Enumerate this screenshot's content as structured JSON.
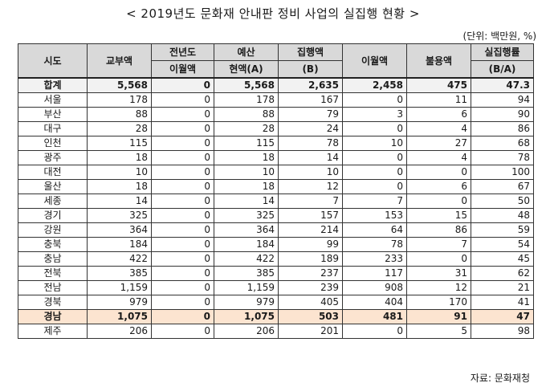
{
  "title": "< 2019년도 문화재 안내판 정비 사업의 실집행 현황 >",
  "unit": "(단위: 백만원, %)",
  "source": "자료: 문화재청",
  "columns": {
    "region": "시도",
    "grant": "교부액",
    "prev_carry": [
      "전년도",
      "이월액"
    ],
    "budget": [
      "예산",
      "현액(A)"
    ],
    "executed": [
      "집행액",
      "(B)"
    ],
    "carryover": "이월액",
    "unused": "불용액",
    "rate": [
      "실집행률",
      "(B/A)"
    ]
  },
  "total": [
    "합계",
    "5,568",
    "0",
    "5,568",
    "2,635",
    "2,458",
    "475",
    "47.3"
  ],
  "rows": [
    [
      "서울",
      "178",
      "0",
      "178",
      "167",
      "0",
      "11",
      "94"
    ],
    [
      "부산",
      "88",
      "0",
      "88",
      "79",
      "3",
      "6",
      "90"
    ],
    [
      "대구",
      "28",
      "0",
      "28",
      "24",
      "0",
      "4",
      "86"
    ],
    [
      "인천",
      "115",
      "0",
      "115",
      "78",
      "10",
      "27",
      "68"
    ],
    [
      "광주",
      "18",
      "0",
      "18",
      "14",
      "0",
      "4",
      "78"
    ],
    [
      "대전",
      "10",
      "0",
      "10",
      "10",
      "0",
      "0",
      "100"
    ],
    [
      "울산",
      "18",
      "0",
      "18",
      "12",
      "0",
      "6",
      "67"
    ],
    [
      "세종",
      "14",
      "0",
      "14",
      "7",
      "7",
      "0",
      "50"
    ],
    [
      "경기",
      "325",
      "0",
      "325",
      "157",
      "153",
      "15",
      "48"
    ],
    [
      "강원",
      "364",
      "0",
      "364",
      "214",
      "64",
      "86",
      "59"
    ],
    [
      "충북",
      "184",
      "0",
      "184",
      "99",
      "78",
      "7",
      "54"
    ],
    [
      "충남",
      "422",
      "0",
      "422",
      "189",
      "233",
      "0",
      "45"
    ],
    [
      "전북",
      "385",
      "0",
      "385",
      "237",
      "117",
      "31",
      "62"
    ],
    [
      "전남",
      "1,159",
      "0",
      "1,159",
      "239",
      "908",
      "12",
      "21"
    ],
    [
      "경북",
      "979",
      "0",
      "979",
      "405",
      "404",
      "170",
      "41"
    ],
    [
      "경남",
      "1,075",
      "0",
      "1,075",
      "503",
      "481",
      "91",
      "47"
    ],
    [
      "제주",
      "206",
      "0",
      "206",
      "201",
      "0",
      "5",
      "98"
    ]
  ],
  "highlight_row": "경남",
  "colors": {
    "header_bg": "#d9d9d9",
    "highlight_bg": "#fce4d0",
    "border": "#333333"
  }
}
